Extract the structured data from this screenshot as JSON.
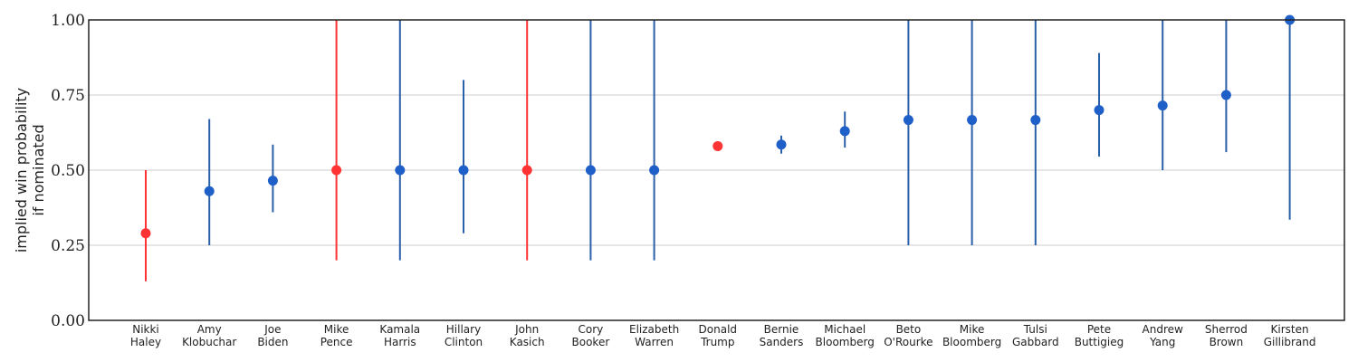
{
  "chart_data": {
    "type": "scatter",
    "ylabel_lines": [
      "implied win probability",
      "if nominated"
    ],
    "ylim": [
      0,
      1
    ],
    "yticks": [
      "0.00",
      "0.25",
      "0.50",
      "0.75",
      "1.00"
    ],
    "ytick_values": [
      0,
      0.25,
      0.5,
      0.75,
      1.0
    ],
    "grid": "horizontal",
    "colors": {
      "republican": "#ff3333",
      "democrat": "#1f5fc8",
      "errorbar_democrat": "#2a5faa"
    },
    "categories": [
      {
        "line1": "Nikki",
        "line2": "Haley",
        "party": "republican"
      },
      {
        "line1": "Amy",
        "line2": "Klobuchar",
        "party": "democrat"
      },
      {
        "line1": "Joe",
        "line2": "Biden",
        "party": "democrat"
      },
      {
        "line1": "Mike",
        "line2": "Pence",
        "party": "republican"
      },
      {
        "line1": "Kamala",
        "line2": "Harris",
        "party": "democrat"
      },
      {
        "line1": "Hillary",
        "line2": "Clinton",
        "party": "democrat"
      },
      {
        "line1": "John",
        "line2": "Kasich",
        "party": "republican"
      },
      {
        "line1": "Cory",
        "line2": "Booker",
        "party": "democrat"
      },
      {
        "line1": "Elizabeth",
        "line2": "Warren",
        "party": "democrat"
      },
      {
        "line1": "Donald",
        "line2": "Trump",
        "party": "republican"
      },
      {
        "line1": "Bernie",
        "line2": "Sanders",
        "party": "democrat"
      },
      {
        "line1": "Michael",
        "line2": "Bloomberg",
        "party": "democrat"
      },
      {
        "line1": "Beto",
        "line2": "O'Rourke",
        "party": "democrat"
      },
      {
        "line1": "Mike",
        "line2": "Bloomberg",
        "party": "democrat"
      },
      {
        "line1": "Tulsi",
        "line2": "Gabbard",
        "party": "democrat"
      },
      {
        "line1": "Pete",
        "line2": "Buttigieg",
        "party": "democrat"
      },
      {
        "line1": "Andrew",
        "line2": "Yang",
        "party": "democrat"
      },
      {
        "line1": "Sherrod",
        "line2": "Brown",
        "party": "democrat"
      },
      {
        "line1": "Kirsten",
        "line2": "Gillibrand",
        "party": "democrat"
      }
    ],
    "values": [
      0.29,
      0.43,
      0.465,
      0.5,
      0.5,
      0.5,
      0.5,
      0.5,
      0.5,
      0.58,
      0.585,
      0.63,
      0.667,
      0.667,
      0.667,
      0.7,
      0.715,
      0.75,
      1.0
    ],
    "lower": [
      0.13,
      0.25,
      0.36,
      0.2,
      0.2,
      0.29,
      0.2,
      0.2,
      0.2,
      null,
      0.555,
      0.575,
      0.25,
      0.25,
      0.25,
      0.545,
      0.5,
      0.56,
      0.335
    ],
    "upper": [
      0.5,
      0.67,
      0.585,
      1.0,
      1.0,
      0.8,
      1.0,
      1.0,
      1.0,
      null,
      0.615,
      0.695,
      1.0,
      1.0,
      1.0,
      0.89,
      1.0,
      1.0,
      1.0
    ]
  }
}
